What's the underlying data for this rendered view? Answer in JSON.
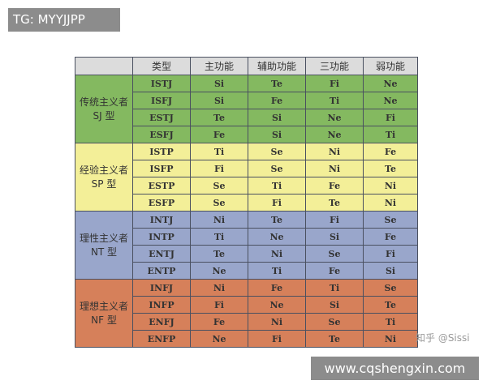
{
  "watermark_top": "TG: MYYJJPP",
  "watermark_bottom": "www.cqshengxin.com",
  "credit": "知乎 @Sissi",
  "headers": [
    "",
    "类型",
    "主功能",
    "辅助功能",
    "三功能",
    "弱功能"
  ],
  "groups": [
    {
      "name": "传统主义者",
      "sub": "SJ 型",
      "color": "#84b960",
      "rows": [
        [
          "ISTJ",
          "Si",
          "Te",
          "Fi",
          "Ne"
        ],
        [
          "ISFJ",
          "Si",
          "Fe",
          "Ti",
          "Ne"
        ],
        [
          "ESTJ",
          "Te",
          "Si",
          "Ne",
          "Fi"
        ],
        [
          "ESFJ",
          "Fe",
          "Si",
          "Ne",
          "Ti"
        ]
      ]
    },
    {
      "name": "经验主义者",
      "sub": "SP 型",
      "color": "#f3ef98",
      "rows": [
        [
          "ISTP",
          "Ti",
          "Se",
          "Ni",
          "Fe"
        ],
        [
          "ISFP",
          "Fi",
          "Se",
          "Ni",
          "Te"
        ],
        [
          "ESTP",
          "Se",
          "Ti",
          "Fe",
          "Ni"
        ],
        [
          "ESFP",
          "Se",
          "Fi",
          "Te",
          "Ni"
        ]
      ]
    },
    {
      "name": "理性主义者",
      "sub": "NT 型",
      "color": "#99a6cb",
      "rows": [
        [
          "INTJ",
          "Ni",
          "Te",
          "Fi",
          "Se"
        ],
        [
          "INTP",
          "Ti",
          "Ne",
          "Si",
          "Fe"
        ],
        [
          "ENTJ",
          "Te",
          "Ni",
          "Se",
          "Fi"
        ],
        [
          "ENTP",
          "Ne",
          "Ti",
          "Fe",
          "Si"
        ]
      ]
    },
    {
      "name": "理想主义者",
      "sub": "NF 型",
      "color": "#d6805a",
      "rows": [
        [
          "INFJ",
          "Ni",
          "Fe",
          "Ti",
          "Se"
        ],
        [
          "INFP",
          "Fi",
          "Ne",
          "Si",
          "Te"
        ],
        [
          "ENFJ",
          "Fe",
          "Ni",
          "Se",
          "Ti"
        ],
        [
          "ENFP",
          "Ne",
          "Fi",
          "Te",
          "Ni"
        ]
      ]
    }
  ]
}
